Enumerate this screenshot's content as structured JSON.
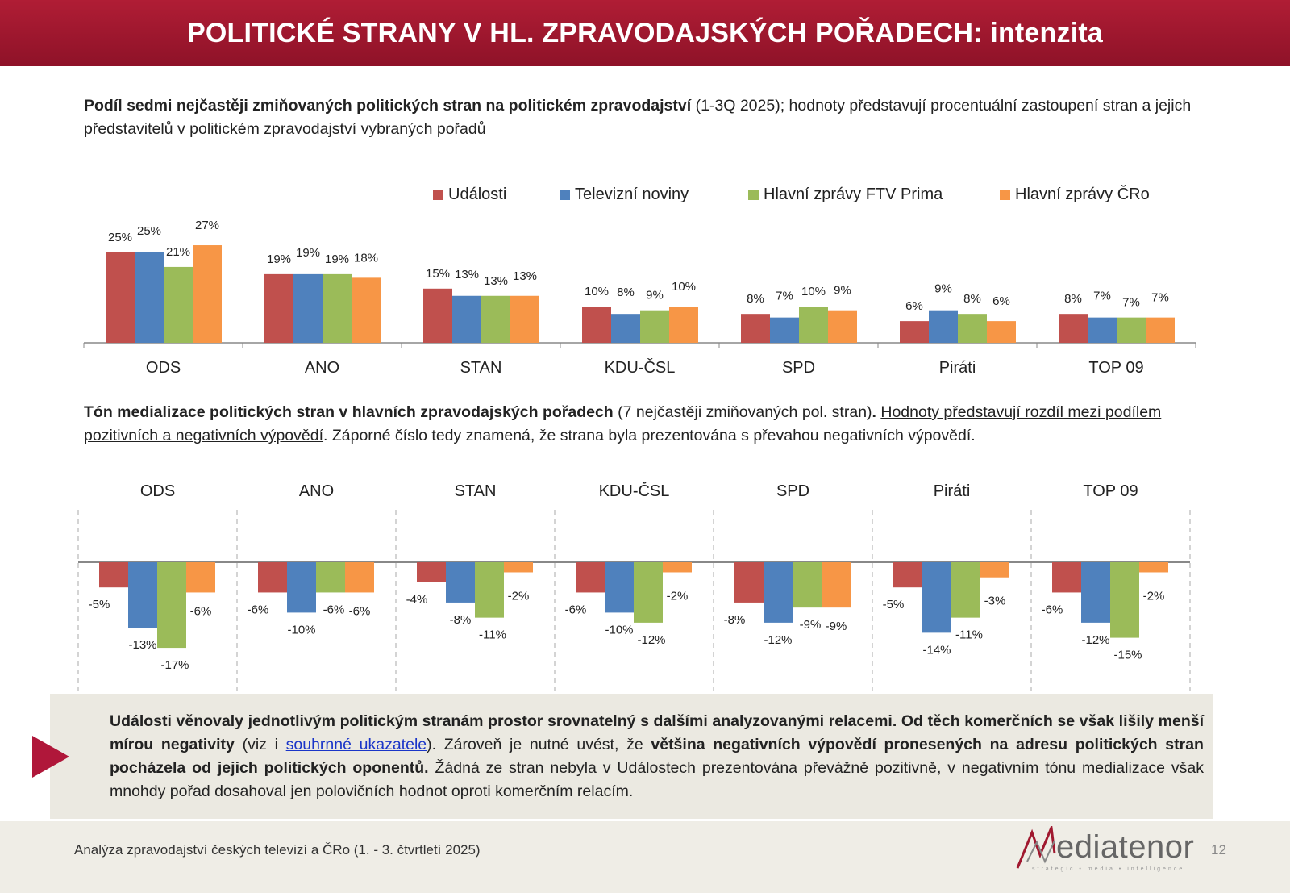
{
  "header": {
    "title": "POLITICKÉ STRANY V HL. ZPRAVODAJSKÝCH POŘADECH: intenzita"
  },
  "para1": {
    "bold": "Podíl sedmi nejčastěji zmiňovaných politických stran na politickém zpravodajství",
    "rest": " (1-3Q 2025); hodnoty představují procentuální zastoupení stran a jejich představitelů v politickém zpravodajství vybraných pořadů"
  },
  "para2": {
    "bold": "Tón medializace politických stran v hlavních zpravodajských pořadech",
    "mid": " (7 nejčastěji zmiňovaných pol. stran)",
    "dot": ". ",
    "underlined": "Hodnoty představují rozdíl mezi podílem pozitivních a negativních výpovědí",
    "rest": ". Záporné číslo tedy znamená, že strana byla prezentována s převahou negativních výpovědí."
  },
  "colors": {
    "Události": "#c0504d",
    "Televizní noviny": "#4f81bd",
    "Hlavní zprávy FTV Prima": "#9bbb59",
    "Hlavní zprávy ČRo": "#f79646",
    "header": "#a0182f"
  },
  "chart_data": [
    {
      "type": "bar",
      "legend_position": "top",
      "categories": [
        "ODS",
        "ANO",
        "STAN",
        "KDU-ČSL",
        "SPD",
        "Piráti",
        "TOP 09"
      ],
      "series": [
        {
          "name": "Události",
          "values": [
            25,
            19,
            15,
            10,
            8,
            6,
            8
          ]
        },
        {
          "name": "Televizní noviny",
          "values": [
            25,
            19,
            13,
            8,
            7,
            9,
            7
          ]
        },
        {
          "name": "Hlavní zprávy FTV Prima",
          "values": [
            21,
            19,
            13,
            9,
            10,
            8,
            7
          ]
        },
        {
          "name": "Hlavní zprávy ČRo",
          "values": [
            27,
            18,
            13,
            10,
            9,
            6,
            7
          ]
        }
      ],
      "unit": "%"
    },
    {
      "type": "bar",
      "categories": [
        "ODS",
        "ANO",
        "STAN",
        "KDU-ČSL",
        "SPD",
        "Piráti",
        "TOP 09"
      ],
      "series": [
        {
          "name": "Události",
          "values": [
            -5,
            -6,
            -4,
            -6,
            -8,
            -5,
            -6
          ]
        },
        {
          "name": "Televizní noviny",
          "values": [
            -13,
            -10,
            -8,
            -10,
            -12,
            -14,
            -12
          ]
        },
        {
          "name": "Hlavní zprávy FTV Prima",
          "values": [
            -17,
            -6,
            -11,
            -12,
            -9,
            -11,
            -15
          ]
        },
        {
          "name": "Hlavní zprávy ČRo",
          "values": [
            -6,
            -6,
            -2,
            -2,
            -9,
            -3,
            -2
          ]
        }
      ],
      "unit": "%"
    }
  ],
  "box": {
    "b1": "Události věnovaly jednotlivým politickým stranám prostor srovnatelný s dalšími analyzovanými relacemi. Od těch komerčních se však lišily menší mírou negativity",
    "t1": " (viz i ",
    "link": "souhrnné ukazatele",
    "t2": "). Zároveň je nutné uvést, že ",
    "b2": "většina negativních výpovědí pronesených na adresu politických stran pocházela od jejich politických oponentů.",
    "t3": " Žádná ze stran nebyla v Událostech prezentována převážně pozitivně, v negativním tónu medializace však mnohdy pořad dosahoval jen polovičních hodnot oproti komerčním relacím."
  },
  "footer": {
    "text": "Analýza zpravodajství českých televizí a ČRo (1. - 3. čtvrtletí 2025)",
    "logo": "Mediatenor",
    "logo_tag": "strategic • media • intelligence",
    "page": "12"
  }
}
